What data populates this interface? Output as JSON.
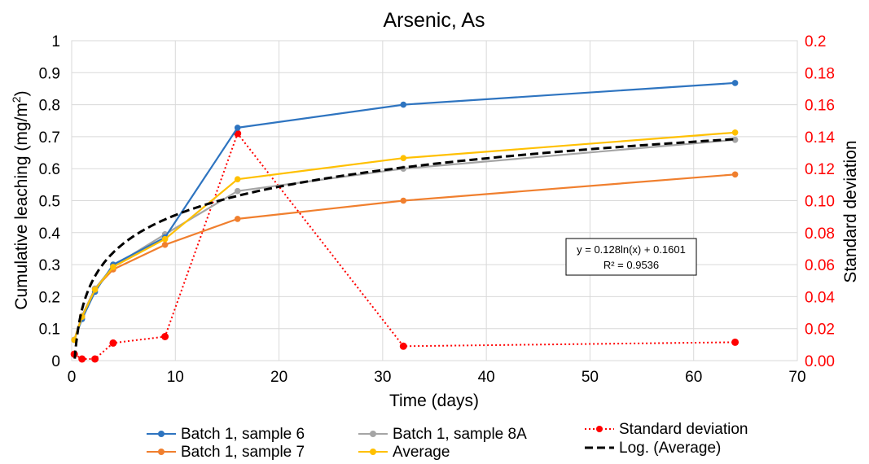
{
  "chart_data": {
    "type": "line",
    "title": "Arsenic, As",
    "xlabel": "Time (days)",
    "ylabel": "Cumulative leaching (mg/m²)",
    "ylabel_main": "Cumulative leaching (mg/m",
    "ylabel_sup": "2",
    "ylabel_end": ")",
    "y2label": "Standard deviation",
    "xlim": [
      0,
      70
    ],
    "ylim": [
      0,
      1
    ],
    "y2lim": [
      0,
      0.2
    ],
    "x_ticks": [
      "0",
      "10",
      "20",
      "30",
      "40",
      "50",
      "60",
      "70"
    ],
    "y_ticks": [
      "0",
      "0.1",
      "0.2",
      "0.3",
      "0.4",
      "0.5",
      "0.6",
      "0.7",
      "0.8",
      "0.9",
      "1"
    ],
    "y2_ticks": [
      "0.00",
      "0.02",
      "0.04",
      "0.06",
      "0.08",
      "0.10",
      "0.12",
      "0.14",
      "0.16",
      "0.18",
      "0.2"
    ],
    "grid": true,
    "legend_position": "bottom",
    "series": [
      {
        "name": "Batch 1, sample 6",
        "color": "#2E74C0",
        "axis": "left",
        "style": "solid",
        "x": [
          0.25,
          1,
          2.25,
          4,
          9,
          16,
          32,
          64
        ],
        "y": [
          0.065,
          0.13,
          0.215,
          0.3,
          0.385,
          0.728,
          0.8,
          0.868
        ]
      },
      {
        "name": "Batch 1, sample 7",
        "color": "#F07F2E",
        "axis": "left",
        "style": "solid",
        "x": [
          0.25,
          1,
          2.25,
          4,
          9,
          16,
          32,
          64
        ],
        "y": [
          0.065,
          0.14,
          0.225,
          0.285,
          0.362,
          0.443,
          0.5,
          0.582
        ]
      },
      {
        "name": "Batch 1, sample 8A",
        "color": "#A5A5A5",
        "axis": "left",
        "style": "solid",
        "x": [
          0.25,
          1,
          2.25,
          4,
          9,
          16,
          32,
          64
        ],
        "y": [
          0.065,
          0.14,
          0.225,
          0.295,
          0.395,
          0.53,
          0.6,
          0.69
        ]
      },
      {
        "name": "Average",
        "color": "#FFC000",
        "axis": "left",
        "style": "solid",
        "x": [
          0.25,
          1,
          2.25,
          4,
          9,
          16,
          32,
          64
        ],
        "y": [
          0.065,
          0.137,
          0.222,
          0.293,
          0.38,
          0.567,
          0.633,
          0.713
        ]
      },
      {
        "name": "Standard deviation",
        "color": "#FF0000",
        "axis": "right",
        "style": "dotted",
        "x": [
          0.25,
          1,
          2.25,
          4,
          9,
          16,
          32,
          64
        ],
        "y": [
          0.004,
          0.001,
          0.001,
          0.011,
          0.015,
          0.142,
          0.009,
          0.0115
        ]
      }
    ],
    "trendline": {
      "name": "Log. (Average)",
      "color": "#000000",
      "style": "dashed",
      "a": 0.128,
      "b": 0.1601,
      "x_range": [
        0.3,
        64
      ],
      "equation": "y = 0.128ln(x) + 0.1601",
      "r_squared": "R² = 0.9536"
    },
    "legend": [
      {
        "label": "Batch 1, sample 6",
        "series": 0
      },
      {
        "label": "Batch 1, sample 7",
        "series": 1
      },
      {
        "label": "Batch 1, sample 8A",
        "series": 2
      },
      {
        "label": "Average",
        "series": 3
      },
      {
        "label": "Standard deviation",
        "series": 4
      },
      {
        "label": "Log. (Average)",
        "series": "trend"
      }
    ]
  }
}
